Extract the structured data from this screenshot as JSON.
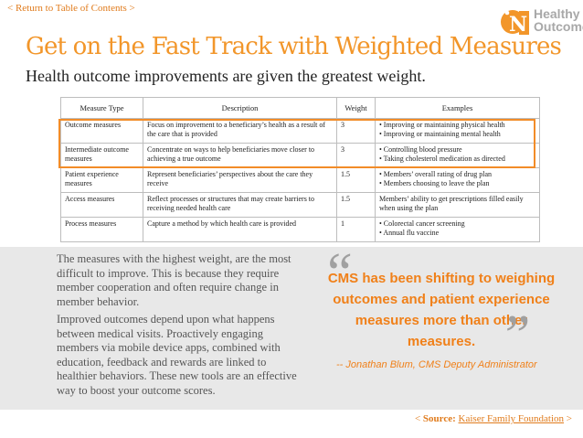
{
  "nav": {
    "toc": "< Return to Table of Contents >"
  },
  "logo": {
    "line1": "Healthy",
    "line2": "Outcomes"
  },
  "title": "Get on the Fast Track with Weighted Measures",
  "subtitle": "Health outcome improvements are given the greatest weight.",
  "table": {
    "headers": [
      "Measure Type",
      "Description",
      "Weight",
      "Examples"
    ],
    "rows": [
      {
        "type": "Outcome measures",
        "desc": "Focus on improvement to a beneficiary’s health as a result of the care that is provided",
        "weight": "3",
        "ex1": "• Improving or maintaining physical health",
        "ex2": "• Improving or maintaining mental health"
      },
      {
        "type": "Intermediate outcome measures",
        "desc": "Concentrate on ways to help beneficiaries move closer to achieving a true outcome",
        "weight": "3",
        "ex1": "• Controlling blood pressure",
        "ex2": "• Taking cholesterol medication as directed"
      },
      {
        "type": "Patient experience measures",
        "desc": "Represent beneficiaries’ perspectives about the care they receive",
        "weight": "1.5",
        "ex1": "• Members’ overall rating of drug plan",
        "ex2": "• Members choosing to leave the plan"
      },
      {
        "type": "Access measures",
        "desc": "Reflect processes or structures that may create barriers to receiving needed health care",
        "weight": "1.5",
        "ex1": "Members’ ability to get prescriptions filled easily when using the plan",
        "ex2": ""
      },
      {
        "type": "Process measures",
        "desc": "Capture a method by which health care is provided",
        "weight": "1",
        "ex1": "• Colorectal cancer screening",
        "ex2": "• Annual flu vaccine"
      }
    ]
  },
  "body": {
    "p1": "The measures with the highest weight, are the most difficult to improve.  This is because they require member cooperation and often require change in member behavior.",
    "p2": "Improved outcomes depend upon what happens between medical visits. Proactively engaging members via mobile device apps, combined with education, feedback and rewards are linked to healthier behaviors. These new tools are an effective way to boost your outcome scores."
  },
  "quote": {
    "open": "“",
    "text": "CMS has been shifting to weighing outcomes and patient experience measures more than other measures.",
    "close": "”",
    "attribution": "-- Jonathan Blum, CMS Deputy Administrator"
  },
  "source": {
    "prefix": "< ",
    "label": "Source:",
    "site": "Kaiser Family Foundation",
    "suffix": " >"
  },
  "colors": {
    "accent": "#f2962a",
    "highlight_border": "#f28c28",
    "band": "#e8e8e8"
  }
}
